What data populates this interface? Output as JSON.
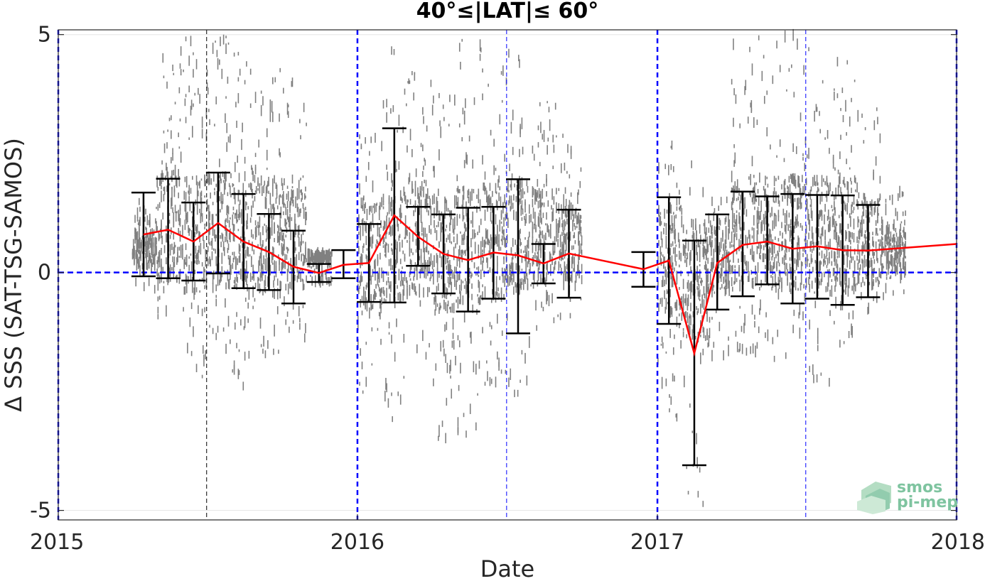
{
  "chart_data": {
    "type": "scatter",
    "title": "40°≤|LAT|≤ 60°",
    "xlabel": "Date",
    "ylabel": "Δ SSS (SAT-TSG-SAMOS)",
    "xlim": [
      "2015-01-01",
      "2018-01-01"
    ],
    "ylim": [
      -5.2,
      5.1
    ],
    "xticks": [
      "2015",
      "2016",
      "2017",
      "2018"
    ],
    "yticks": [
      {
        "value": 5,
        "label": "5"
      },
      {
        "value": 0,
        "label": "0"
      },
      {
        "value": -5,
        "label": "-5"
      }
    ],
    "year_lines": [
      "2015-01-01",
      "2016-01-01",
      "2017-01-01",
      "2018-01-01"
    ],
    "halfyear_lines": [
      {
        "date": "2015-07-01",
        "color": "#000000"
      },
      {
        "date": "2016-07-01",
        "color": "#0000ff"
      },
      {
        "date": "2017-07-01",
        "color": "#0000ff"
      }
    ],
    "zero_line_color": "#0000ff",
    "grid": true,
    "colors": {
      "scatter": "#808080",
      "mean_line": "#ff0000",
      "error_bars": "#000000",
      "reference": "#0000ff"
    },
    "series": [
      {
        "kind": "mean_with_error_bars",
        "points": [
          {
            "x": "2015-04-15",
            "mean": 0.8,
            "low": -0.08,
            "high": 1.68
          },
          {
            "x": "2015-05-15",
            "mean": 0.9,
            "low": -0.12,
            "high": 1.97
          },
          {
            "x": "2015-06-15",
            "mean": 0.65,
            "low": -0.17,
            "high": 1.47
          },
          {
            "x": "2015-07-15",
            "mean": 1.04,
            "low": -0.02,
            "high": 2.1
          },
          {
            "x": "2015-08-15",
            "mean": 0.65,
            "low": -0.33,
            "high": 1.65
          },
          {
            "x": "2015-09-15",
            "mean": 0.43,
            "low": -0.37,
            "high": 1.23
          },
          {
            "x": "2015-10-15",
            "mean": 0.12,
            "low": -0.65,
            "high": 0.88
          },
          {
            "x": "2015-11-15",
            "mean": -0.01,
            "low": -0.2,
            "high": 0.18
          },
          {
            "x": "2015-12-15",
            "mean": 0.16,
            "low": -0.12,
            "high": 0.47
          },
          {
            "x": "2016-01-15",
            "mean": 0.2,
            "low": -0.62,
            "high": 1.02
          },
          {
            "x": "2016-02-15",
            "mean": 1.2,
            "low": -0.63,
            "high": 3.03
          },
          {
            "x": "2016-03-15",
            "mean": 0.75,
            "low": 0.14,
            "high": 1.38
          },
          {
            "x": "2016-04-15",
            "mean": 0.39,
            "low": -0.44,
            "high": 1.22
          },
          {
            "x": "2016-05-15",
            "mean": 0.26,
            "low": -0.82,
            "high": 1.36
          },
          {
            "x": "2016-06-15",
            "mean": 0.42,
            "low": -0.55,
            "high": 1.38
          },
          {
            "x": "2016-07-15",
            "mean": 0.36,
            "low": -1.28,
            "high": 1.96
          },
          {
            "x": "2016-08-15",
            "mean": 0.19,
            "low": -0.23,
            "high": 0.6
          },
          {
            "x": "2016-09-15",
            "mean": 0.4,
            "low": -0.53,
            "high": 1.32
          },
          {
            "x": "2016-12-15",
            "mean": 0.07,
            "low": -0.3,
            "high": 0.43
          },
          {
            "x": "2017-01-15",
            "mean": 0.25,
            "low": -1.08,
            "high": 1.58
          },
          {
            "x": "2017-02-15",
            "mean": -1.7,
            "low": -4.05,
            "high": 0.67
          },
          {
            "x": "2017-03-15",
            "mean": 0.2,
            "low": -0.78,
            "high": 1.22
          },
          {
            "x": "2017-04-15",
            "mean": 0.58,
            "low": -0.5,
            "high": 1.7
          },
          {
            "x": "2017-05-15",
            "mean": 0.65,
            "low": -0.25,
            "high": 1.6
          },
          {
            "x": "2017-06-15",
            "mean": 0.5,
            "low": -0.65,
            "high": 1.65
          },
          {
            "x": "2017-07-15",
            "mean": 0.55,
            "low": -0.55,
            "high": 1.63
          },
          {
            "x": "2017-08-15",
            "mean": 0.47,
            "low": -0.68,
            "high": 1.62
          },
          {
            "x": "2017-09-15",
            "mean": 0.46,
            "low": -0.52,
            "high": 1.42
          },
          {
            "x": "2018-01-01",
            "mean": 0.6
          }
        ]
      },
      {
        "kind": "raw_scatter_envelope",
        "points": [
          {
            "x": "2015-04-01",
            "low": -0.4,
            "high": 1.5
          },
          {
            "x": "2015-05-01",
            "low": -1.0,
            "high": 4.8
          },
          {
            "x": "2015-06-01",
            "low": -2.2,
            "high": 5.0
          },
          {
            "x": "2015-07-01",
            "low": -1.7,
            "high": 5.0
          },
          {
            "x": "2015-08-01",
            "low": -2.4,
            "high": 4.6
          },
          {
            "x": "2015-09-01",
            "low": -1.8,
            "high": 4.3
          },
          {
            "x": "2015-10-01",
            "low": -1.4,
            "high": 4.2
          },
          {
            "x": "2015-11-01",
            "low": -0.2,
            "high": 0.3
          },
          {
            "x": "2016-01-01",
            "low": -2.6,
            "high": 3.1
          },
          {
            "x": "2016-02-01",
            "low": -3.4,
            "high": 4.8
          },
          {
            "x": "2016-03-01",
            "low": -1.9,
            "high": 4.4
          },
          {
            "x": "2016-04-01",
            "low": -3.5,
            "high": 3.8
          },
          {
            "x": "2016-05-01",
            "low": -3.5,
            "high": 5.0
          },
          {
            "x": "2016-06-01",
            "low": -2.4,
            "high": 4.4
          },
          {
            "x": "2016-07-01",
            "low": -2.6,
            "high": 5.0
          },
          {
            "x": "2016-08-01",
            "low": -1.2,
            "high": 3.7
          },
          {
            "x": "2016-09-01",
            "low": -1.0,
            "high": 3.0
          },
          {
            "x": "2017-01-01",
            "low": -3.1,
            "high": 2.7
          },
          {
            "x": "2017-02-01",
            "low": -5.0,
            "high": 2.3
          },
          {
            "x": "2017-03-01",
            "low": -1.8,
            "high": 1.6
          },
          {
            "x": "2017-04-01",
            "low": -1.8,
            "high": 4.8
          },
          {
            "x": "2017-05-01",
            "low": -2.0,
            "high": 5.0
          },
          {
            "x": "2017-06-01",
            "low": -1.8,
            "high": 5.0
          },
          {
            "x": "2017-07-01",
            "low": -2.4,
            "high": 5.0
          },
          {
            "x": "2017-08-01",
            "low": -1.7,
            "high": 4.5
          },
          {
            "x": "2017-09-01",
            "low": -1.3,
            "high": 3.5
          },
          {
            "x": "2017-10-01",
            "low": -0.6,
            "high": 1.7
          }
        ]
      }
    ]
  },
  "logo": {
    "line1": "smos",
    "line2": "pi-mep",
    "color": "#7fc4a0"
  }
}
